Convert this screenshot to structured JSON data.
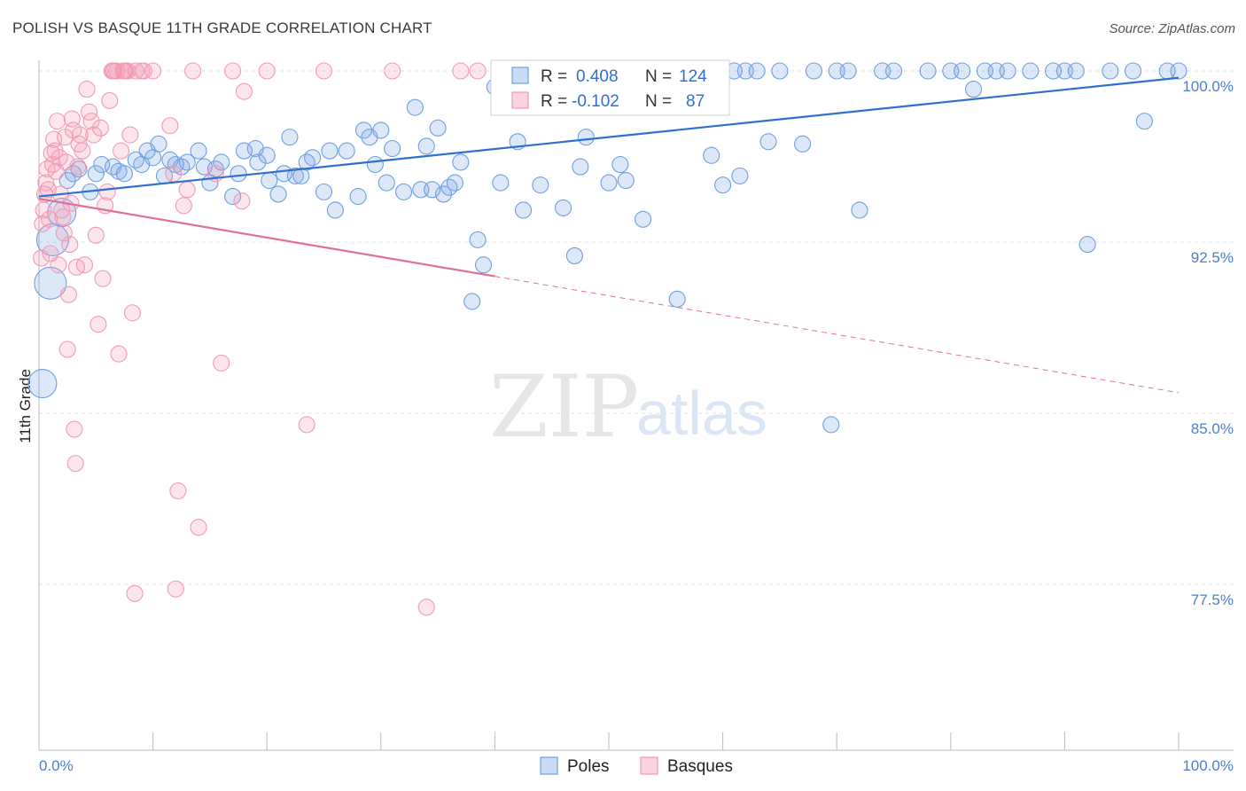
{
  "title": "POLISH VS BASQUE 11TH GRADE CORRELATION CHART",
  "source": "Source: ZipAtlas.com",
  "watermark": {
    "zip": "ZIP",
    "atlas": "atlas"
  },
  "colors": {
    "poles": "#6f9fe0",
    "poles_line": "#2f6fd0",
    "basques": "#f29ab5",
    "basques_line": "#e07098",
    "tick": "#4a7fd0"
  },
  "stats_legend": {
    "r_label": "R =",
    "n_label": "N =",
    "poles": {
      "r": "0.408",
      "n": "124"
    },
    "basques": {
      "r": "-0.102",
      "n": "87"
    }
  },
  "chart_data": {
    "type": "scatter",
    "title": "POLISH VS BASQUE 11TH GRADE CORRELATION CHART",
    "xlabel": "",
    "ylabel": "11th Grade",
    "xlim": [
      0,
      100
    ],
    "ylim": [
      70.5,
      101.2
    ],
    "x_tick_labels": {
      "left": "0.0%",
      "right": "100.0%"
    },
    "y_ticks": [
      {
        "value": 100.0,
        "label": "100.0%"
      },
      {
        "value": 92.5,
        "label": "92.5%"
      },
      {
        "value": 85.0,
        "label": "85.0%"
      },
      {
        "value": 77.5,
        "label": "77.5%"
      }
    ],
    "legend": [
      "Poles",
      "Basques"
    ],
    "series": [
      {
        "name": "Poles",
        "trend": {
          "x0": 0,
          "y0": 94.5,
          "x1": 100,
          "y1": 99.7
        },
        "points": [
          [
            0.3,
            86.3,
            16
          ],
          [
            1,
            90.7,
            18
          ],
          [
            1.2,
            92.6,
            18
          ],
          [
            2,
            93.8,
            16
          ],
          [
            2.5,
            95.2,
            12
          ],
          [
            3,
            95.5,
            10
          ],
          [
            3.5,
            95.7,
            10
          ],
          [
            4.5,
            94.7,
            10
          ],
          [
            5,
            95.5,
            10
          ],
          [
            5.5,
            95.9,
            10
          ],
          [
            6.5,
            95.8,
            10
          ],
          [
            7,
            95.6,
            10
          ],
          [
            7.5,
            95.5,
            10
          ],
          [
            8.5,
            96.1,
            10
          ],
          [
            9,
            95.9,
            10
          ],
          [
            9.5,
            96.5,
            10
          ],
          [
            10,
            96.2,
            10
          ],
          [
            10.5,
            96.8,
            10
          ],
          [
            11,
            95.4,
            10
          ],
          [
            11.5,
            96.1,
            10
          ],
          [
            12,
            95.9,
            10
          ],
          [
            12.5,
            95.8,
            10
          ],
          [
            13,
            96.0,
            10
          ],
          [
            14,
            96.5,
            10
          ],
          [
            14.5,
            95.8,
            10
          ],
          [
            15,
            95.1,
            10
          ],
          [
            15.5,
            95.7,
            10
          ],
          [
            16,
            96.0,
            10
          ],
          [
            17,
            94.5,
            10
          ],
          [
            17.5,
            95.5,
            10
          ],
          [
            18,
            96.5,
            10
          ],
          [
            19,
            96.6,
            10
          ],
          [
            19.2,
            96.0,
            10
          ],
          [
            20,
            96.3,
            10
          ],
          [
            20.2,
            95.2,
            10
          ],
          [
            21,
            94.6,
            10
          ],
          [
            21.5,
            95.5,
            10
          ],
          [
            22,
            97.1,
            10
          ],
          [
            22.5,
            95.4,
            10
          ],
          [
            23,
            95.4,
            10
          ],
          [
            23.5,
            96.0,
            10
          ],
          [
            24,
            96.2,
            10
          ],
          [
            25,
            94.7,
            10
          ],
          [
            25.5,
            96.5,
            10
          ],
          [
            26,
            93.9,
            10
          ],
          [
            27,
            96.5,
            10
          ],
          [
            28,
            94.5,
            10
          ],
          [
            28.5,
            97.4,
            10
          ],
          [
            29,
            97.1,
            10
          ],
          [
            29.5,
            95.9,
            10
          ],
          [
            30,
            97.4,
            10
          ],
          [
            30.5,
            95.1,
            10
          ],
          [
            31,
            96.6,
            10
          ],
          [
            32,
            94.7,
            10
          ],
          [
            33,
            98.4,
            10
          ],
          [
            33.5,
            94.8,
            10
          ],
          [
            34,
            96.7,
            10
          ],
          [
            34.5,
            94.8,
            10
          ],
          [
            35,
            97.5,
            10
          ],
          [
            35.5,
            94.6,
            10
          ],
          [
            36,
            94.9,
            10
          ],
          [
            36.5,
            95.1,
            10
          ],
          [
            37,
            96.0,
            10
          ],
          [
            38,
            89.9,
            10
          ],
          [
            38.5,
            92.6,
            10
          ],
          [
            39,
            91.5,
            10
          ],
          [
            40,
            99.3,
            10
          ],
          [
            40.5,
            95.1,
            10
          ],
          [
            41,
            100,
            10
          ],
          [
            42,
            96.9,
            10
          ],
          [
            42.5,
            93.9,
            10
          ],
          [
            43,
            100,
            10
          ],
          [
            44,
            95.0,
            10
          ],
          [
            45,
            100,
            10
          ],
          [
            46,
            94.0,
            10
          ],
          [
            47,
            91.9,
            10
          ],
          [
            47.5,
            95.8,
            10
          ],
          [
            48,
            97.1,
            10
          ],
          [
            49,
            100,
            10
          ],
          [
            50,
            95.1,
            10
          ],
          [
            51,
            95.9,
            10
          ],
          [
            51.5,
            95.2,
            10
          ],
          [
            52,
            100,
            10
          ],
          [
            53,
            93.5,
            10
          ],
          [
            55,
            100,
            10
          ],
          [
            56,
            90.0,
            10
          ],
          [
            57,
            100,
            10
          ],
          [
            58,
            100,
            10
          ],
          [
            59,
            96.3,
            10
          ],
          [
            60,
            95.0,
            10
          ],
          [
            61,
            100,
            10
          ],
          [
            61.5,
            95.4,
            10
          ],
          [
            62,
            100,
            10
          ],
          [
            63,
            100,
            10
          ],
          [
            64,
            96.9,
            10
          ],
          [
            65,
            100,
            10
          ],
          [
            67,
            96.8,
            10
          ],
          [
            68,
            100,
            10
          ],
          [
            69.5,
            84.5,
            10
          ],
          [
            70,
            100,
            10
          ],
          [
            71,
            100,
            10
          ],
          [
            72,
            93.9,
            10
          ],
          [
            74,
            100,
            10
          ],
          [
            75,
            100,
            10
          ],
          [
            78,
            100,
            10
          ],
          [
            80,
            100,
            10
          ],
          [
            81,
            100,
            10
          ],
          [
            82,
            99.2,
            10
          ],
          [
            83,
            100,
            10
          ],
          [
            84,
            100,
            10
          ],
          [
            85,
            100,
            10
          ],
          [
            87,
            100,
            10
          ],
          [
            89,
            100,
            10
          ],
          [
            90,
            100,
            10
          ],
          [
            91,
            100,
            10
          ],
          [
            92,
            92.4,
            10
          ],
          [
            94,
            100,
            10
          ],
          [
            96,
            100,
            10
          ],
          [
            97,
            97.8,
            10
          ],
          [
            99,
            100,
            10
          ],
          [
            100,
            100,
            10
          ]
        ]
      },
      {
        "name": "Basques",
        "trend": {
          "x0": 0,
          "y0": 94.4,
          "x1": 40,
          "y1": 91.0,
          "dash_x1": 100,
          "dash_y1": 85.9
        },
        "points": [
          [
            0.2,
            91.8,
            14
          ],
          [
            0.3,
            93.3,
            12
          ],
          [
            0.4,
            93.9,
            12
          ],
          [
            0.5,
            94.6,
            12
          ],
          [
            0.6,
            95.1,
            12
          ],
          [
            0.7,
            95.7,
            12
          ],
          [
            0.8,
            94.8,
            10
          ],
          [
            0.9,
            93.5,
            10
          ],
          [
            1,
            92.0,
            10
          ],
          [
            1.1,
            96.4,
            10
          ],
          [
            1.2,
            95.9,
            10
          ],
          [
            1.3,
            97.0,
            10
          ],
          [
            1.4,
            96.5,
            10
          ],
          [
            1.5,
            95.6,
            10
          ],
          [
            1.6,
            97.8,
            10
          ],
          [
            1.7,
            91.5,
            10
          ],
          [
            1.8,
            96.2,
            10
          ],
          [
            1.9,
            94.6,
            10
          ],
          [
            2,
            93.9,
            10
          ],
          [
            2.1,
            93.6,
            10
          ],
          [
            2.2,
            92.9,
            10
          ],
          [
            2.3,
            97.1,
            10
          ],
          [
            2.4,
            96.0,
            10
          ],
          [
            2.5,
            87.8,
            10
          ],
          [
            2.6,
            90.2,
            10
          ],
          [
            2.7,
            92.4,
            10
          ],
          [
            2.8,
            94.2,
            10
          ],
          [
            2.9,
            97.9,
            10
          ],
          [
            3,
            97.4,
            10
          ],
          [
            3.1,
            84.3,
            10
          ],
          [
            3.2,
            82.8,
            10
          ],
          [
            3.3,
            91.4,
            10
          ],
          [
            3.4,
            95.8,
            10
          ],
          [
            3.5,
            96.8,
            10
          ],
          [
            3.6,
            97.2,
            10
          ],
          [
            3.8,
            96.5,
            10
          ],
          [
            4,
            91.5,
            10
          ],
          [
            4.2,
            99.2,
            10
          ],
          [
            4.4,
            98.2,
            10
          ],
          [
            4.6,
            97.8,
            10
          ],
          [
            4.8,
            97.2,
            10
          ],
          [
            5,
            92.8,
            10
          ],
          [
            5.2,
            88.9,
            10
          ],
          [
            5.4,
            97.5,
            10
          ],
          [
            5.6,
            90.9,
            10
          ],
          [
            5.8,
            94.1,
            10
          ],
          [
            6,
            94.7,
            10
          ],
          [
            6.2,
            98.7,
            10
          ],
          [
            6.4,
            100,
            10
          ],
          [
            6.6,
            100,
            10
          ],
          [
            6.8,
            100,
            10
          ],
          [
            7,
            87.6,
            10
          ],
          [
            7.2,
            96.5,
            10
          ],
          [
            7.4,
            100,
            10
          ],
          [
            7.6,
            100,
            10
          ],
          [
            7.8,
            100,
            10
          ],
          [
            8,
            97.2,
            10
          ],
          [
            8.2,
            89.4,
            10
          ],
          [
            8.4,
            77.1,
            10
          ],
          [
            9,
            100,
            10
          ],
          [
            9.2,
            100,
            10
          ],
          [
            10,
            100,
            10
          ],
          [
            11.5,
            97.6,
            10
          ],
          [
            11.8,
            95.5,
            10
          ],
          [
            12,
            77.3,
            10
          ],
          [
            12.2,
            81.6,
            10
          ],
          [
            12.7,
            94.1,
            10
          ],
          [
            13,
            94.8,
            10
          ],
          [
            13.5,
            100,
            10
          ],
          [
            14,
            80.0,
            10
          ],
          [
            15.5,
            95.5,
            10
          ],
          [
            16,
            87.2,
            10
          ],
          [
            17,
            100,
            10
          ],
          [
            17.8,
            94.3,
            10
          ],
          [
            18,
            99.1,
            10
          ],
          [
            20,
            100,
            10
          ],
          [
            23.5,
            84.5,
            10
          ],
          [
            25,
            100,
            10
          ],
          [
            31,
            100,
            10
          ],
          [
            34,
            76.5,
            10
          ],
          [
            37,
            100,
            10
          ],
          [
            38.5,
            100,
            10
          ],
          [
            41,
            100,
            10
          ],
          [
            42,
            100,
            10
          ],
          [
            52,
            100,
            10
          ],
          [
            6.5,
            100,
            10
          ],
          [
            7.5,
            100,
            10
          ],
          [
            8.5,
            100,
            10
          ]
        ]
      }
    ]
  }
}
